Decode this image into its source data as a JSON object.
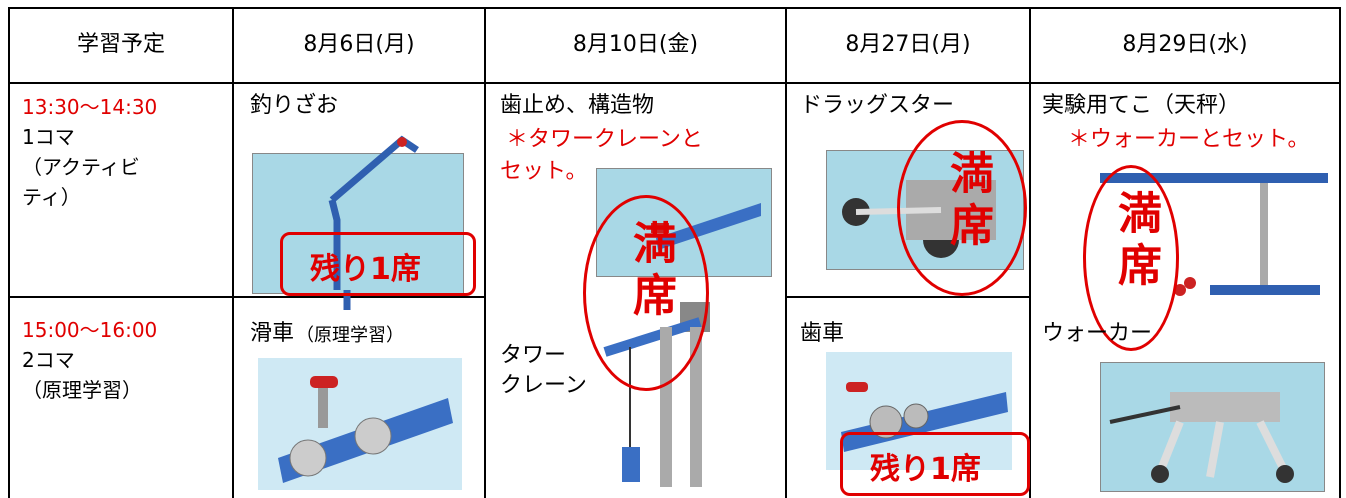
{
  "table": {
    "header": [
      "学習予定",
      "8月6日(月)",
      "8月10日(金)",
      "8月27日(月)",
      "8月29日(水)"
    ],
    "slots": [
      {
        "time": "13:30〜14:30",
        "label": [
          "1コマ",
          "（アクティビ",
          "ティ）"
        ]
      },
      {
        "time": "15:00〜16:00",
        "label": [
          "2コマ",
          "（原理学習）"
        ]
      }
    ],
    "classes": [
      {
        "title": "釣りざお",
        "badge": "残り1席"
      },
      {
        "title": "歯止め、構造物",
        "note": [
          "＊タワークレーンと",
          "セット。"
        ],
        "badge": "満席",
        "sub": [
          "タワー",
          "クレーン"
        ]
      },
      {
        "title": "ドラッグスター",
        "badge": "満席"
      },
      {
        "title": "実験用てこ（天秤）",
        "note": [
          "＊ウォーカーとセット。"
        ],
        "badge": "満席",
        "sub": [
          "ウォーカー"
        ]
      },
      {
        "title": "滑車",
        "title_note": "（原理学習）"
      },
      {
        "title": "歯車",
        "badge": "残り1席"
      }
    ]
  }
}
